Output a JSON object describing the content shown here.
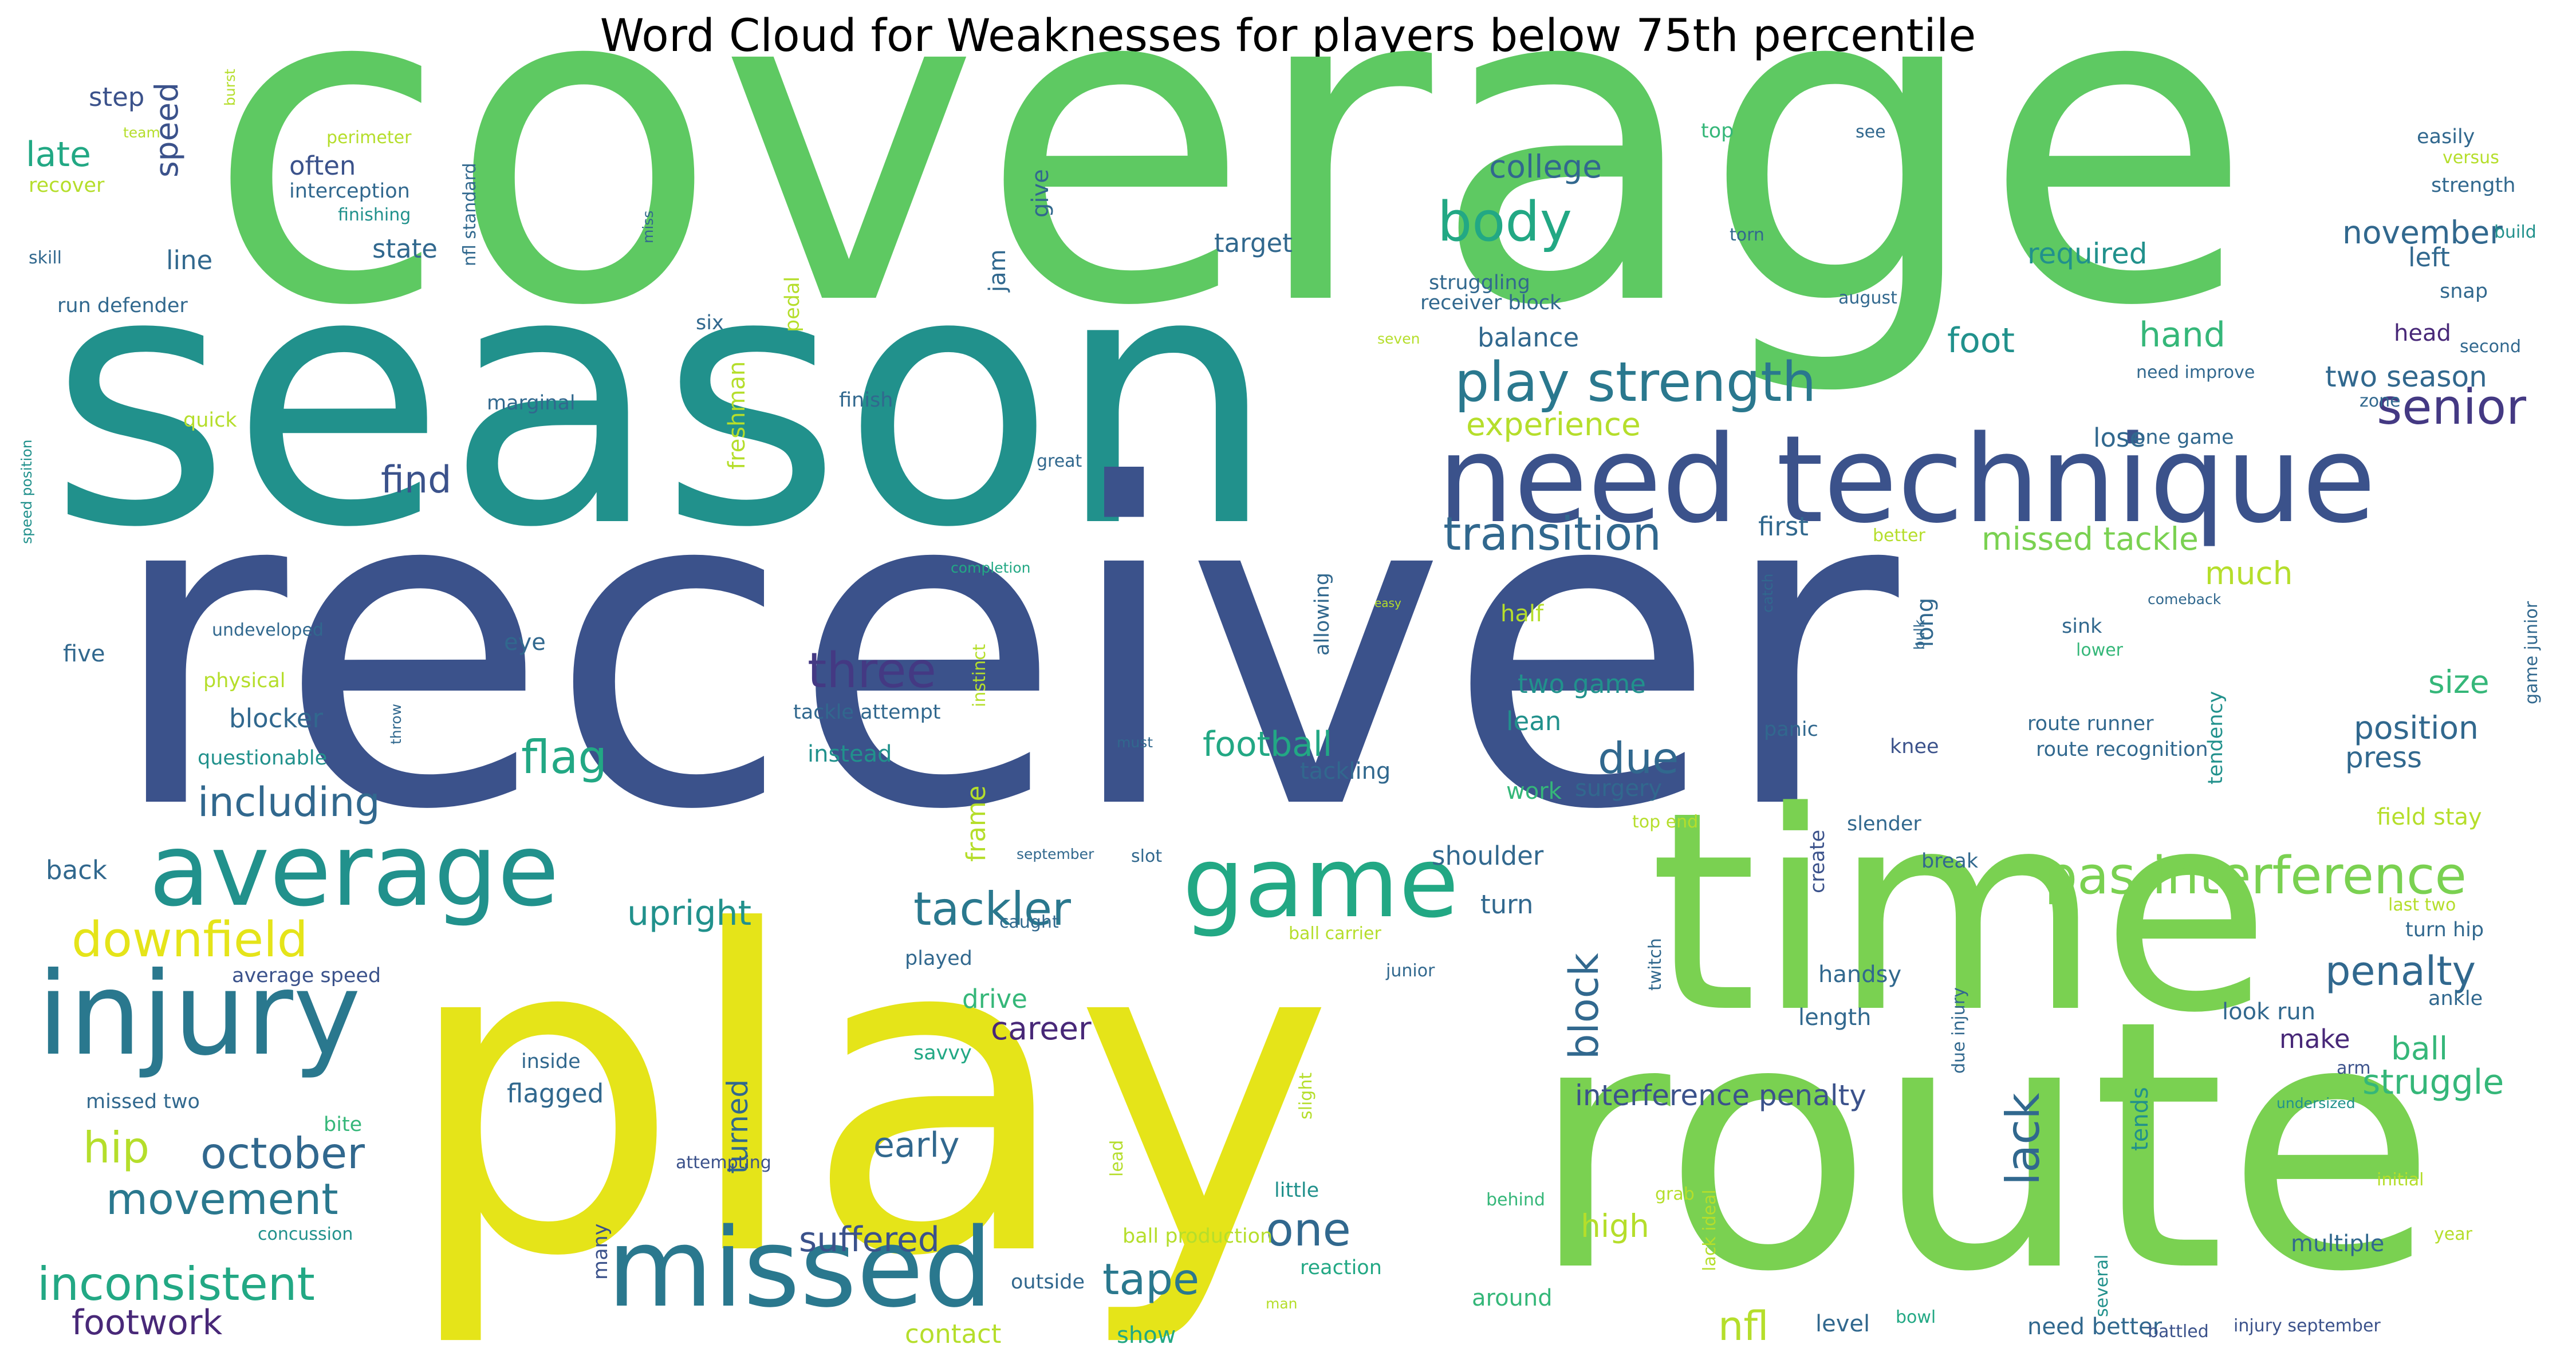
{
  "title": "Word Cloud for Weaknesses for players below 75th percentile",
  "words": [
    {
      "t": "coverage",
      "c": "#5ec962"
    },
    {
      "t": "season",
      "c": "#21918c"
    },
    {
      "t": "receiver",
      "c": "#3b528b"
    },
    {
      "t": "play",
      "c": "#e5e419"
    },
    {
      "t": "route",
      "c": "#7ad151"
    },
    {
      "t": "time",
      "c": "#7ad151"
    },
    {
      "t": "need technique",
      "c": "#3b528b"
    },
    {
      "t": "missed",
      "c": "#2a788e"
    },
    {
      "t": "injury",
      "c": "#2a788e"
    },
    {
      "t": "average",
      "c": "#21918c"
    },
    {
      "t": "game",
      "c": "#22a884"
    },
    {
      "t": "play strength",
      "c": "#2a788e"
    },
    {
      "t": "transition",
      "c": "#31688e"
    },
    {
      "t": "senior",
      "c": "#443983"
    },
    {
      "t": "body",
      "c": "#22a884"
    },
    {
      "t": "pas interference",
      "c": "#7ad151"
    },
    {
      "t": "three",
      "c": "#443983"
    },
    {
      "t": "tackler",
      "c": "#2a788e"
    },
    {
      "t": "downfield",
      "c": "#e5e419"
    },
    {
      "t": "including",
      "c": "#31688e"
    },
    {
      "t": "flag",
      "c": "#22a884"
    },
    {
      "t": "due",
      "c": "#31688e"
    },
    {
      "t": "hip",
      "c": "#b5de2b"
    },
    {
      "t": "october",
      "c": "#31688e"
    },
    {
      "t": "movement",
      "c": "#2a788e"
    },
    {
      "t": "inconsistent",
      "c": "#22a884"
    },
    {
      "t": "footwork",
      "c": "#482878"
    },
    {
      "t": "tape",
      "c": "#2a788e"
    },
    {
      "t": "one",
      "c": "#31688e"
    },
    {
      "t": "suffered",
      "c": "#3b528b"
    },
    {
      "t": "career",
      "c": "#482878"
    },
    {
      "t": "penalty",
      "c": "#31688e"
    },
    {
      "t": "struggle",
      "c": "#35b779"
    },
    {
      "t": "lack",
      "c": "#31688e"
    },
    {
      "t": "block",
      "c": "#31688e"
    },
    {
      "t": "interference penalty",
      "c": "#3b528b"
    },
    {
      "t": "missed tackle",
      "c": "#7ad151"
    },
    {
      "t": "experience",
      "c": "#b5de2b"
    },
    {
      "t": "find",
      "c": "#3b528b"
    },
    {
      "t": "football",
      "c": "#22a884"
    },
    {
      "t": "position",
      "c": "#31688e"
    },
    {
      "t": "college",
      "c": "#31688e"
    },
    {
      "t": "foot",
      "c": "#21918c"
    },
    {
      "t": "hand",
      "c": "#35b779"
    },
    {
      "t": "two season",
      "c": "#31688e"
    },
    {
      "t": "nfl",
      "c": "#b5de2b"
    },
    {
      "t": "high",
      "c": "#b5de2b"
    },
    {
      "t": "size",
      "c": "#35b779"
    },
    {
      "t": "ball",
      "c": "#35b779"
    },
    {
      "t": "upright",
      "c": "#21918c"
    },
    {
      "t": "early",
      "c": "#31688e"
    },
    {
      "t": "much",
      "c": "#b5de2b"
    },
    {
      "t": "november",
      "c": "#31688e"
    },
    {
      "t": "required",
      "c": "#21918c"
    },
    {
      "t": "press",
      "c": "#31688e"
    },
    {
      "t": "make",
      "c": "#482878"
    },
    {
      "t": "speed",
      "c": "#3b528b"
    },
    {
      "t": "late",
      "c": "#22a884"
    },
    {
      "t": "step",
      "c": "#3b528b"
    },
    {
      "t": "often",
      "c": "#3b528b"
    },
    {
      "t": "state",
      "c": "#31688e"
    },
    {
      "t": "line",
      "c": "#31688e"
    },
    {
      "t": "target",
      "c": "#31688e"
    },
    {
      "t": "balance",
      "c": "#31688e"
    },
    {
      "t": "left",
      "c": "#31688e"
    },
    {
      "t": "first",
      "c": "#31688e"
    },
    {
      "t": "lose",
      "c": "#31688e"
    },
    {
      "t": "half",
      "c": "#b5de2b"
    },
    {
      "t": "lean",
      "c": "#21918c"
    },
    {
      "t": "two game",
      "c": "#21918c"
    },
    {
      "t": "work",
      "c": "#35b779"
    },
    {
      "t": "frame",
      "c": "#b5de2b"
    },
    {
      "t": "surgery",
      "c": "#31688e"
    },
    {
      "t": "shoulder",
      "c": "#31688e"
    },
    {
      "t": "turn",
      "c": "#31688e"
    },
    {
      "t": "tackling",
      "c": "#31688e"
    },
    {
      "t": "field stay",
      "c": "#b5de2b"
    },
    {
      "t": "look run",
      "c": "#31688e"
    },
    {
      "t": "handsy",
      "c": "#31688e"
    },
    {
      "t": "length",
      "c": "#31688e"
    },
    {
      "t": "tends",
      "c": "#21918c"
    },
    {
      "t": "turned",
      "c": "#31688e"
    },
    {
      "t": "drive",
      "c": "#35b779"
    },
    {
      "t": "flagged",
      "c": "#31688e"
    },
    {
      "t": "back",
      "c": "#31688e"
    },
    {
      "t": "blocker",
      "c": "#31688e"
    },
    {
      "t": "five",
      "c": "#31688e"
    },
    {
      "t": "eye",
      "c": "#31688e"
    },
    {
      "t": "instead",
      "c": "#21918c"
    },
    {
      "t": "contact",
      "c": "#b5de2b"
    },
    {
      "t": "show",
      "c": "#22a884"
    },
    {
      "t": "level",
      "c": "#31688e"
    },
    {
      "t": "need better",
      "c": "#31688e"
    },
    {
      "t": "around",
      "c": "#35b779"
    },
    {
      "t": "multiple",
      "c": "#31688e"
    },
    {
      "t": "jam",
      "c": "#31688e"
    },
    {
      "t": "give",
      "c": "#31688e"
    },
    {
      "t": "six",
      "c": "#31688e"
    },
    {
      "t": "freshman",
      "c": "#b5de2b"
    },
    {
      "t": "pedal",
      "c": "#b5de2b"
    },
    {
      "t": "quick",
      "c": "#b5de2b"
    },
    {
      "t": "physical",
      "c": "#b5de2b"
    },
    {
      "t": "questionable",
      "c": "#21918c"
    },
    {
      "t": "average speed",
      "c": "#3b528b"
    },
    {
      "t": "missed two",
      "c": "#31688e"
    },
    {
      "t": "inside",
      "c": "#31688e"
    },
    {
      "t": "bite",
      "c": "#35b779"
    },
    {
      "t": "savvy",
      "c": "#22a884"
    },
    {
      "t": "attempting",
      "c": "#3b528b"
    },
    {
      "t": "many",
      "c": "#3b528b"
    },
    {
      "t": "concussion",
      "c": "#21918c"
    },
    {
      "t": "outside",
      "c": "#31688e"
    },
    {
      "t": "ball production",
      "c": "#b5de2b"
    },
    {
      "t": "reaction",
      "c": "#22a884"
    },
    {
      "t": "little",
      "c": "#21918c"
    },
    {
      "t": "behind",
      "c": "#35b779"
    },
    {
      "t": "grab",
      "c": "#b5de2b"
    },
    {
      "t": "lack ideal",
      "c": "#b5de2b"
    },
    {
      "t": "bowl",
      "c": "#22a884"
    },
    {
      "t": "battled",
      "c": "#3b528b"
    },
    {
      "t": "injury september",
      "c": "#3b528b"
    },
    {
      "t": "several",
      "c": "#21918c"
    },
    {
      "t": "year",
      "c": "#b5de2b"
    },
    {
      "t": "initial",
      "c": "#b5de2b"
    },
    {
      "t": "undersized",
      "c": "#21918c"
    },
    {
      "t": "arm",
      "c": "#3b528b"
    },
    {
      "t": "ankle",
      "c": "#31688e"
    },
    {
      "t": "turn hip",
      "c": "#31688e"
    },
    {
      "t": "last two",
      "c": "#b5de2b"
    },
    {
      "t": "break",
      "c": "#31688e"
    },
    {
      "t": "slender",
      "c": "#31688e"
    },
    {
      "t": "create",
      "c": "#3b528b"
    },
    {
      "t": "knee",
      "c": "#3b528b"
    },
    {
      "t": "panic",
      "c": "#31688e"
    },
    {
      "t": "top end",
      "c": "#b5de2b"
    },
    {
      "t": "route runner",
      "c": "#31688e"
    },
    {
      "t": "route recognition",
      "c": "#31688e"
    },
    {
      "t": "tendency",
      "c": "#21918c"
    },
    {
      "t": "game junior",
      "c": "#31688e"
    },
    {
      "t": "comeback",
      "c": "#31688e"
    },
    {
      "t": "lower",
      "c": "#35b779"
    },
    {
      "t": "sink",
      "c": "#31688e"
    },
    {
      "t": "long",
      "c": "#31688e"
    },
    {
      "t": "catch",
      "c": "#31688e"
    },
    {
      "t": "bulk",
      "c": "#31688e"
    },
    {
      "t": "easily",
      "c": "#31688e"
    },
    {
      "t": "versus",
      "c": "#b5de2b"
    },
    {
      "t": "strength",
      "c": "#31688e"
    },
    {
      "t": "build",
      "c": "#21918c"
    },
    {
      "t": "snap",
      "c": "#31688e"
    },
    {
      "t": "second",
      "c": "#31688e"
    },
    {
      "t": "head",
      "c": "#482878"
    },
    {
      "t": "zone",
      "c": "#31688e"
    },
    {
      "t": "need improve",
      "c": "#31688e"
    },
    {
      "t": "one game",
      "c": "#31688e"
    },
    {
      "t": "august",
      "c": "#31688e"
    },
    {
      "t": "see",
      "c": "#31688e"
    },
    {
      "t": "top",
      "c": "#35b779"
    },
    {
      "t": "torn",
      "c": "#31688e"
    },
    {
      "t": "better",
      "c": "#b5de2b"
    },
    {
      "t": "struggling",
      "c": "#31688e"
    },
    {
      "t": "receiver block",
      "c": "#31688e"
    },
    {
      "t": "seven",
      "c": "#b5de2b"
    },
    {
      "t": "great",
      "c": "#31688e"
    },
    {
      "t": "marginal",
      "c": "#31688e"
    },
    {
      "t": "finish",
      "c": "#31688e"
    },
    {
      "t": "completion",
      "c": "#22a884"
    },
    {
      "t": "allowing",
      "c": "#31688e"
    },
    {
      "t": "easy",
      "c": "#b5de2b"
    },
    {
      "t": "undeveloped",
      "c": "#31688e"
    },
    {
      "t": "instinct",
      "c": "#b5de2b"
    },
    {
      "t": "throw",
      "c": "#31688e"
    },
    {
      "t": "tackle attempt",
      "c": "#31688e"
    },
    {
      "t": "must",
      "c": "#31688e"
    },
    {
      "t": "september",
      "c": "#31688e"
    },
    {
      "t": "slot",
      "c": "#31688e"
    },
    {
      "t": "caught",
      "c": "#31688e"
    },
    {
      "t": "played",
      "c": "#31688e"
    },
    {
      "t": "ball carrier",
      "c": "#b5de2b"
    },
    {
      "t": "junior",
      "c": "#31688e"
    },
    {
      "t": "twitch",
      "c": "#31688e"
    },
    {
      "t": "due injury",
      "c": "#31688e"
    },
    {
      "t": "slight",
      "c": "#b5de2b"
    },
    {
      "t": "lead",
      "c": "#b5de2b"
    },
    {
      "t": "man",
      "c": "#b5de2b"
    },
    {
      "t": "team",
      "c": "#b5de2b"
    },
    {
      "t": "burst",
      "c": "#b5de2b"
    },
    {
      "t": "perimeter",
      "c": "#b5de2b"
    },
    {
      "t": "recover",
      "c": "#b5de2b"
    },
    {
      "t": "interception",
      "c": "#31688e"
    },
    {
      "t": "finishing",
      "c": "#21918c"
    },
    {
      "t": "miss",
      "c": "#31688e"
    },
    {
      "t": "nfl standard",
      "c": "#31688e"
    },
    {
      "t": "skill",
      "c": "#31688e"
    },
    {
      "t": "run defender",
      "c": "#31688e"
    },
    {
      "t": "speed position",
      "c": "#21918c"
    }
  ]
}
